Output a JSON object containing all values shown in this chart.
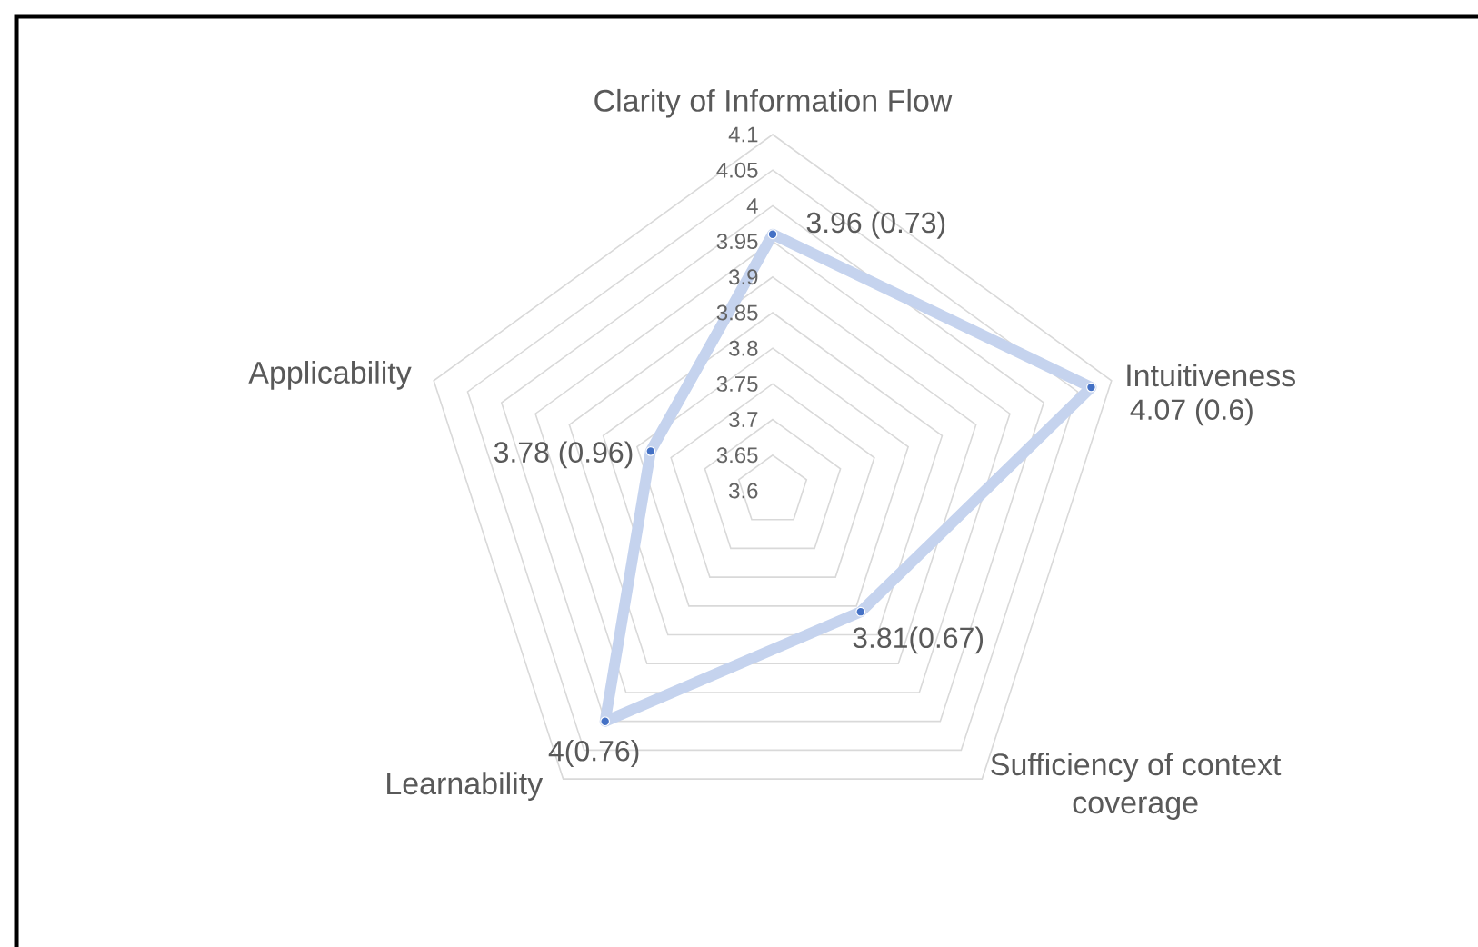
{
  "chart_data": {
    "type": "radar",
    "categories": [
      "Clarity of Information Flow",
      "Intuitiveness",
      "Sufficiency of context coverage",
      "Learnability",
      "Applicability"
    ],
    "series": [
      {
        "color": "#c5d3ee",
        "values": [
          3.96,
          4.07,
          3.81,
          4,
          3.78
        ],
        "value_labels": [
          "3.96 (0.73)",
          "4.07 (0.6)",
          "3.81(0.67)",
          "4(0.76)",
          "3.78 (0.96)"
        ]
      }
    ],
    "ylim": [
      3.6,
      4.1
    ],
    "yticks": [
      3.6,
      3.65,
      3.7,
      3.75,
      3.8,
      3.85,
      3.9,
      3.95,
      4,
      4.05,
      4.1
    ],
    "marker": "circle",
    "grid": true
  }
}
